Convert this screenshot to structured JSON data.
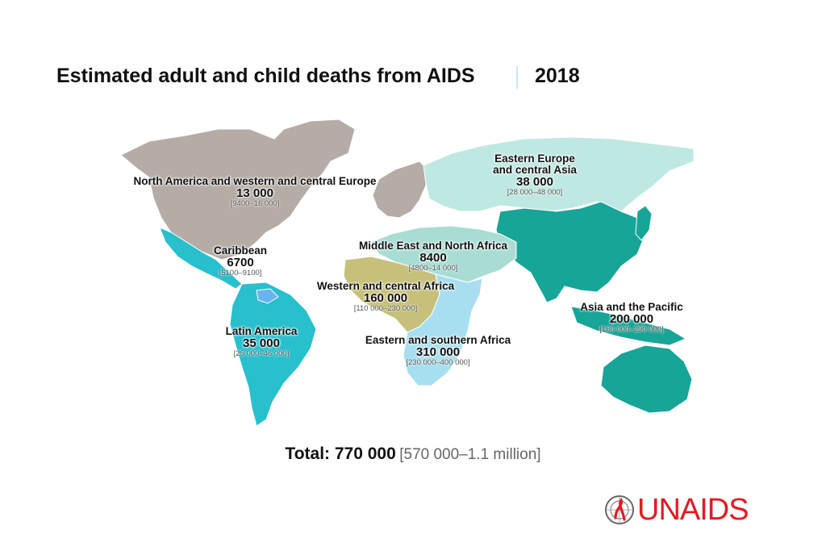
{
  "title": "Estimated adult and child deaths from AIDS",
  "year": "2018",
  "colors": {
    "north_america_europe": "#b5aca6",
    "eastern_europe_central_asia": "#bfe8e2",
    "asia_pacific": "#17a598",
    "mena": "#a9ddd4",
    "western_central_africa": "#c6c07b",
    "eastern_southern_africa": "#a8dff0",
    "latin_america": "#27c0cc",
    "caribbean": "#6bb2f0"
  },
  "regions": [
    {
      "name": "North America and western and central Europe",
      "value": "13 000",
      "range": "[9400–16 000]"
    },
    {
      "name": "Eastern Europe\nand central Asia",
      "value": "38 000",
      "range": "[28 000–48 000]"
    },
    {
      "name": "Caribbean",
      "value": "6700",
      "range": "[5100–9100]"
    },
    {
      "name": "Middle East and North Africa",
      "value": "8400",
      "range": "[4800–14 000]"
    },
    {
      "name": "Western and central Africa",
      "value": "160 000",
      "range": "[110 000–230 000]"
    },
    {
      "name": "Asia and the Pacific",
      "value": "200 000",
      "range": "[160 000–290 000]"
    },
    {
      "name": "Latin America",
      "value": "35 000",
      "range": "[25 000–46 000]"
    },
    {
      "name": "Eastern and southern Africa",
      "value": "310 000",
      "range": "[230 000–400 000]"
    }
  ],
  "total": {
    "label": "Total: 770 000",
    "range": "[570 000–1.1 million]"
  },
  "logo": {
    "text": "UNAIDS"
  }
}
